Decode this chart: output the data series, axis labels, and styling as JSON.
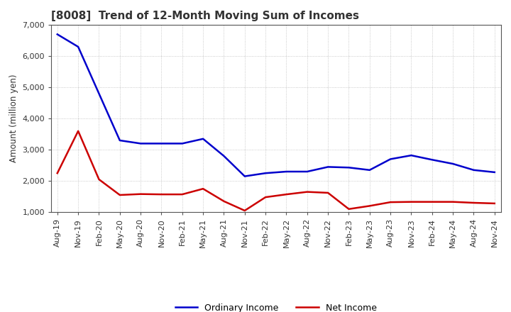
{
  "title": "[8008]  Trend of 12-Month Moving Sum of Incomes",
  "ylabel": "Amount (million yen)",
  "ylim": [
    1000,
    7000
  ],
  "yticks": [
    1000,
    2000,
    3000,
    4000,
    5000,
    6000,
    7000
  ],
  "x_labels": [
    "Aug-19",
    "Nov-19",
    "Feb-20",
    "May-20",
    "Aug-20",
    "Nov-20",
    "Feb-21",
    "May-21",
    "Aug-21",
    "Nov-21",
    "Feb-22",
    "May-22",
    "Aug-22",
    "Nov-22",
    "Feb-23",
    "May-23",
    "Aug-23",
    "Nov-23",
    "Feb-24",
    "May-24",
    "Aug-24",
    "Nov-24"
  ],
  "ordinary_income": [
    6700,
    6300,
    4800,
    3300,
    3200,
    3200,
    3200,
    3350,
    2800,
    2150,
    2250,
    2300,
    2300,
    2450,
    2430,
    2350,
    2700,
    2820,
    2680,
    2550,
    2350,
    2280
  ],
  "net_income": [
    2250,
    3600,
    2050,
    1550,
    1580,
    1570,
    1570,
    1750,
    1350,
    1050,
    1480,
    1570,
    1650,
    1620,
    1100,
    1200,
    1320,
    1330,
    1330,
    1330,
    1300,
    1280
  ],
  "ordinary_color": "#0000cc",
  "net_color": "#cc0000",
  "background_color": "#ffffff",
  "plot_bg_color": "#ffffff",
  "grid_color": "#bbbbbb",
  "title_color": "#333333",
  "legend_ordinary": "Ordinary Income",
  "legend_net": "Net Income",
  "title_fontsize": 11,
  "label_fontsize": 8.5,
  "tick_fontsize": 8,
  "linewidth": 1.8
}
